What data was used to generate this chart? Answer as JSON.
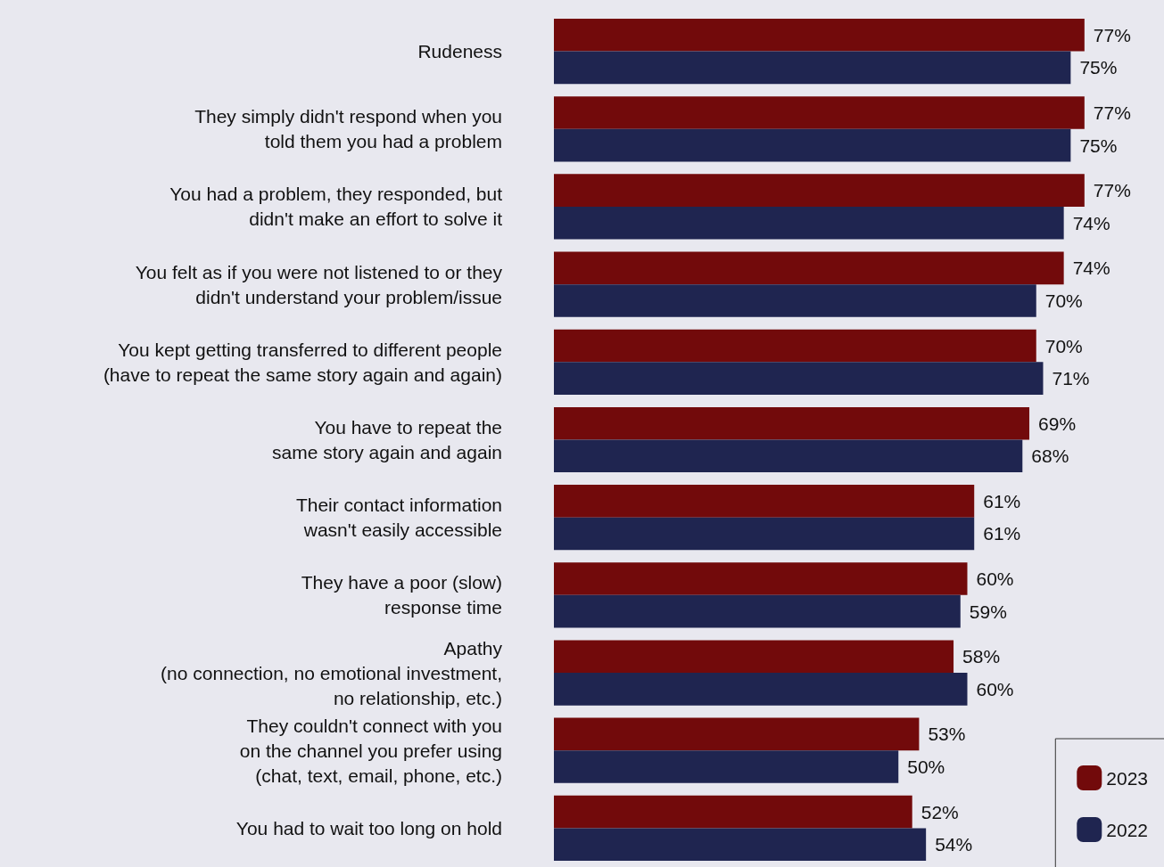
{
  "chart_data": {
    "type": "bar",
    "orientation": "horizontal",
    "tick_labels": "y",
    "grid": false,
    "legend": "bottom right",
    "categories": [
      "Rudeness",
      "They simply didn't respond when you\ntold them you had a problem",
      "You had a problem, they responded, but\ndidn't make an effort to solve it",
      "You felt as if you were not listened to or they\ndidn't understand your problem/issue",
      "You kept getting transferred to different people\n(have to repeat the same story again and again)",
      "You have to repeat the\nsame story again and again",
      "Their contact information\nwasn't easily accessible",
      "They have a poor (slow)\nresponse time",
      "Apathy\n(no connection, no emotional investment,\nno relationship, etc.)",
      "They couldn't connect with you\non the channel you prefer using\n(chat, text, email, phone, etc.)",
      "You had to wait too long on hold"
    ],
    "series": [
      {
        "name": "2023",
        "color": "#720a0b",
        "values": [
          77,
          77,
          77,
          74,
          70,
          69,
          61,
          60,
          58,
          53,
          52
        ],
        "value_labels": [
          "77%",
          "77%",
          "77%",
          "74%",
          "70%",
          "69%",
          "61%",
          "60%",
          "58%",
          "53%",
          "52%"
        ]
      },
      {
        "name": "2022",
        "color": "#1f2550",
        "values": [
          75,
          75,
          74,
          70,
          71,
          68,
          61,
          59,
          60,
          50,
          54
        ],
        "value_labels": [
          "75%",
          "75%",
          "74%",
          "70%",
          "71%",
          "68%",
          "61%",
          "59%",
          "60%",
          "50%",
          "54%"
        ]
      }
    ]
  }
}
